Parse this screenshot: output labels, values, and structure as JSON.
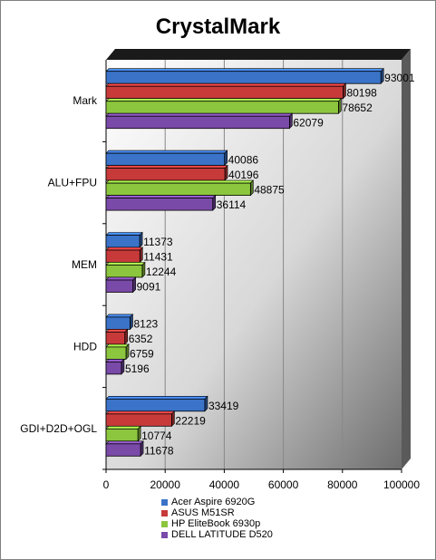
{
  "chart_data": {
    "type": "bar",
    "orientation": "horizontal",
    "title": "CrystalMark",
    "xlabel": "",
    "ylabel": "",
    "categories": [
      "Mark",
      "ALU+FPU",
      "MEM",
      "HDD",
      "GDI+D2D+OGL"
    ],
    "xlim": [
      0,
      100000
    ],
    "xticks": [
      0,
      20000,
      40000,
      60000,
      80000,
      100000
    ],
    "xtick_labels": [
      "0",
      "20000",
      "40000",
      "60000",
      "80000",
      "100000"
    ],
    "grid": true,
    "legend_position": "bottom",
    "series": [
      {
        "name": "Acer Aspire 6920G",
        "color": "#3a73c8",
        "values": [
          93001,
          40086,
          11373,
          8123,
          33419
        ],
        "labels": [
          "93001",
          "40086",
          "11373",
          "8123",
          "33419"
        ]
      },
      {
        "name": "ASUS M51SR",
        "color": "#c83a3a",
        "values": [
          80198,
          40196,
          11431,
          6352,
          22219
        ],
        "labels": [
          "80198",
          "40196",
          "11431",
          "6352",
          "22219"
        ]
      },
      {
        "name": "HP EliteBook 6930p",
        "color": "#8cc63e",
        "values": [
          78652,
          48875,
          12244,
          6759,
          10774
        ],
        "labels": [
          "78652",
          "48875",
          "12244",
          "6759",
          "10774"
        ]
      },
      {
        "name": "DELL LATITUDE D520",
        "color": "#7a4aa8",
        "values": [
          62079,
          36114,
          9091,
          5196,
          11678
        ],
        "labels": [
          "62079",
          "36114",
          "9091",
          "5196",
          "11678"
        ]
      }
    ]
  }
}
